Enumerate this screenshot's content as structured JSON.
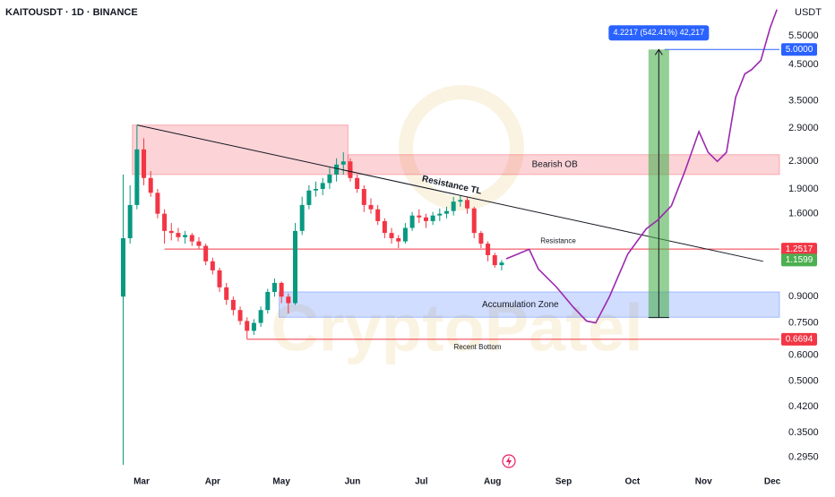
{
  "chart_data": {
    "type": "candlestick",
    "title": "KAITOUSDT · 1D · BINANCE",
    "y_label": "USDT",
    "watermark": "CryptoPatel",
    "log_y": true,
    "grid": false,
    "up_color": "#089981",
    "down_color": "#f23645",
    "xlim": [
      -61.7,
      278.1
    ],
    "ylim": [
      0.27,
      7.05
    ],
    "xticks": [
      {
        "value": 0,
        "label": "Mar"
      },
      {
        "value": 31,
        "label": "Apr"
      },
      {
        "value": 61,
        "label": "May"
      },
      {
        "value": 92,
        "label": "Jun"
      },
      {
        "value": 122,
        "label": "Jul"
      },
      {
        "value": 153,
        "label": "Aug"
      },
      {
        "value": 184,
        "label": "Sep"
      },
      {
        "value": 214,
        "label": "Oct"
      },
      {
        "value": 245,
        "label": "Nov"
      },
      {
        "value": 275,
        "label": "Dec"
      }
    ],
    "yticks": [
      {
        "value": 5.5,
        "label": "5.5000"
      },
      {
        "value": 4.5,
        "label": "4.5000"
      },
      {
        "value": 3.5,
        "label": "3.5000"
      },
      {
        "value": 2.9,
        "label": "2.9000"
      },
      {
        "value": 2.3,
        "label": "2.3000"
      },
      {
        "value": 1.9,
        "label": "1.9000"
      },
      {
        "value": 1.6,
        "label": "1.6000"
      },
      {
        "value": 0.9,
        "label": "0.9000"
      },
      {
        "value": 0.75,
        "label": "0.7500"
      },
      {
        "value": 0.6,
        "label": "0.6000"
      },
      {
        "value": 0.5,
        "label": "0.5000"
      },
      {
        "value": 0.42,
        "label": "0.4200"
      },
      {
        "value": 0.35,
        "label": "0.3500"
      },
      {
        "value": 0.295,
        "label": "0.2950"
      }
    ],
    "x": [
      -8,
      -5,
      -2,
      1,
      4,
      7,
      10,
      13,
      16,
      19,
      22,
      25,
      28,
      31,
      34,
      37,
      40,
      43,
      46,
      49,
      52,
      55,
      58,
      61,
      64,
      67,
      70,
      73,
      76,
      79,
      82,
      85,
      88,
      91,
      94,
      97,
      100,
      103,
      106,
      109,
      112,
      115,
      118,
      121,
      124,
      127,
      130,
      133,
      136,
      139,
      142,
      145,
      148,
      151,
      154,
      157
    ],
    "open": [
      0.9,
      1.35,
      1.7,
      2.5,
      2.05,
      1.85,
      1.6,
      1.42,
      1.4,
      1.36,
      1.38,
      1.32,
      1.28,
      1.15,
      1.08,
      0.96,
      0.88,
      0.82,
      0.76,
      0.71,
      0.75,
      0.82,
      0.93,
      0.99,
      0.9,
      0.86,
      1.42,
      1.7,
      1.88,
      1.9,
      1.98,
      2.1,
      2.25,
      2.3,
      2.05,
      1.9,
      1.7,
      1.65,
      1.52,
      1.4,
      1.35,
      1.32,
      1.45,
      1.58,
      1.56,
      1.52,
      1.58,
      1.6,
      1.63,
      1.74,
      1.76,
      1.66,
      1.4,
      1.3,
      1.2,
      1.12
    ],
    "high": [
      2.1,
      1.95,
      2.95,
      2.7,
      2.15,
      1.9,
      1.65,
      1.5,
      1.45,
      1.42,
      1.4,
      1.36,
      1.3,
      1.18,
      1.1,
      0.99,
      0.9,
      0.84,
      0.78,
      0.77,
      0.84,
      0.95,
      1.02,
      1.0,
      0.92,
      1.5,
      1.8,
      1.95,
      2.0,
      2.05,
      2.2,
      2.35,
      2.45,
      2.35,
      2.1,
      1.95,
      1.78,
      1.7,
      1.55,
      1.45,
      1.38,
      1.5,
      1.62,
      1.65,
      1.6,
      1.62,
      1.66,
      1.68,
      1.8,
      1.82,
      1.8,
      1.68,
      1.42,
      1.32,
      1.22,
      1.16
    ],
    "low": [
      0.28,
      1.3,
      1.65,
      1.95,
      1.8,
      1.55,
      1.3,
      1.33,
      1.32,
      1.3,
      1.28,
      1.25,
      1.12,
      1.05,
      0.93,
      0.85,
      0.79,
      0.74,
      0.67,
      0.69,
      0.73,
      0.8,
      0.9,
      0.86,
      0.8,
      0.85,
      1.38,
      1.65,
      1.8,
      1.82,
      1.9,
      2.0,
      2.1,
      2.0,
      1.85,
      1.62,
      1.6,
      1.48,
      1.35,
      1.3,
      1.26,
      1.3,
      1.42,
      1.5,
      1.45,
      1.48,
      1.52,
      1.55,
      1.58,
      1.68,
      1.6,
      1.35,
      1.26,
      1.15,
      1.1,
      1.08
    ],
    "close": [
      1.35,
      1.7,
      2.5,
      2.05,
      1.85,
      1.6,
      1.42,
      1.4,
      1.36,
      1.38,
      1.32,
      1.28,
      1.15,
      1.08,
      0.96,
      0.88,
      0.82,
      0.76,
      0.71,
      0.75,
      0.82,
      0.93,
      0.99,
      0.9,
      0.86,
      1.42,
      1.7,
      1.88,
      1.9,
      1.98,
      2.1,
      2.25,
      2.3,
      2.05,
      1.9,
      1.7,
      1.65,
      1.52,
      1.4,
      1.35,
      1.32,
      1.45,
      1.58,
      1.56,
      1.52,
      1.58,
      1.6,
      1.63,
      1.74,
      1.76,
      1.66,
      1.4,
      1.3,
      1.2,
      1.12,
      1.14
    ],
    "projection": {
      "color": "#9c27b0",
      "x": [
        159,
        169,
        173,
        181,
        188,
        194,
        198,
        204,
        212,
        220,
        225,
        231,
        237,
        243,
        247,
        251,
        255,
        259,
        263,
        266,
        270,
        274,
        277
      ],
      "values": [
        1.17,
        1.25,
        1.09,
        0.96,
        0.84,
        0.76,
        0.75,
        0.9,
        1.21,
        1.44,
        1.53,
        1.69,
        2.16,
        2.83,
        2.45,
        2.3,
        2.45,
        3.59,
        4.22,
        4.35,
        4.64,
        5.8,
        6.6
      ]
    },
    "trendline": {
      "name": "Resistance TL",
      "color": "#131722",
      "x": [
        -2,
        271
      ],
      "values": [
        2.96,
        1.15
      ]
    },
    "zones": [
      {
        "color": "#f23645",
        "x": [
          -4,
          90
        ],
        "values": [
          2.1,
          2.96
        ]
      },
      {
        "name": "Bearish OB",
        "color": "#f23645",
        "x": [
          90,
          278.1
        ],
        "values": [
          2.1,
          2.41
        ]
      },
      {
        "name": "Accumulation Zone",
        "color": "#2962ff",
        "x": [
          60,
          278.1
        ],
        "values": [
          0.78,
          0.93
        ]
      }
    ],
    "measure": {
      "label": "4.2217 (542.41%) 42,217",
      "color": "#4caf50",
      "x": [
        221,
        230
      ],
      "values": [
        0.7783,
        5
      ]
    },
    "price_markers": [
      {
        "value": 5,
        "label": "5.0000",
        "color": "#2962ff",
        "from": 228
      },
      {
        "name": "Resistance",
        "value": 1.2517,
        "color": "#f23645",
        "from": 10
      },
      {
        "value": 1.1599,
        "color": "#4caf50"
      },
      {
        "name": "Recent Bottom",
        "value": 0.6694,
        "color": "#f23645",
        "from": 46
      }
    ]
  }
}
